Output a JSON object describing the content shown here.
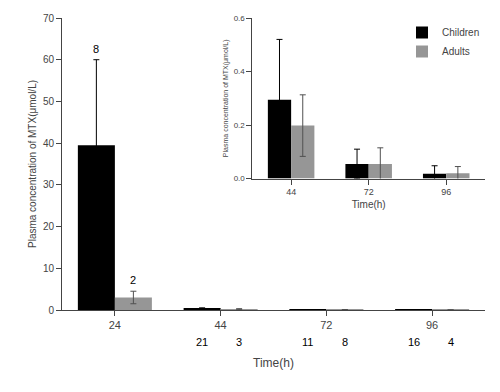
{
  "chart_data": [
    {
      "type": "bar",
      "xlabel": "Time(h)",
      "ylabel": "Plasma concentration of MTX(μmol/L)",
      "categories": [
        "24",
        "44",
        "72",
        "96"
      ],
      "series": [
        {
          "name": "Children",
          "color": "#000000",
          "values": [
            39.5,
            0.3,
            0.055,
            0.018
          ],
          "errors": [
            20.5,
            0.22,
            0.055,
            0.03
          ],
          "sample_sizes": [
            8,
            21,
            11,
            16
          ]
        },
        {
          "name": "Adults",
          "color": "#969696",
          "values": [
            3.0,
            0.2,
            0.055,
            0.02
          ],
          "errors": [
            1.5,
            0.12,
            0.06,
            0.025
          ],
          "sample_sizes": [
            2,
            3,
            8,
            4
          ]
        }
      ],
      "ylim": [
        0,
        70
      ],
      "yticks": [
        0,
        10,
        20,
        30,
        40,
        50,
        60,
        70
      ],
      "grid": false
    },
    {
      "type": "bar",
      "xlabel": "Time(h)",
      "ylabel": "Plasma concentration of MTX(μmol/L)",
      "categories": [
        "44",
        "72",
        "96"
      ],
      "series": [
        {
          "name": "Children",
          "color": "#000000",
          "values": [
            0.295,
            0.055,
            0.018
          ],
          "errors": [
            0.225,
            0.055,
            0.03
          ]
        },
        {
          "name": "Adults",
          "color": "#969696",
          "values": [
            0.198,
            0.055,
            0.02
          ],
          "errors": [
            0.115,
            0.06,
            0.025
          ]
        }
      ],
      "ylim": [
        0,
        0.6
      ],
      "yticks": [
        {
          "value": 0.0,
          "label": "0.0"
        },
        0.2,
        0.4,
        0.6
      ],
      "grid": false,
      "legend": "upper right"
    }
  ]
}
